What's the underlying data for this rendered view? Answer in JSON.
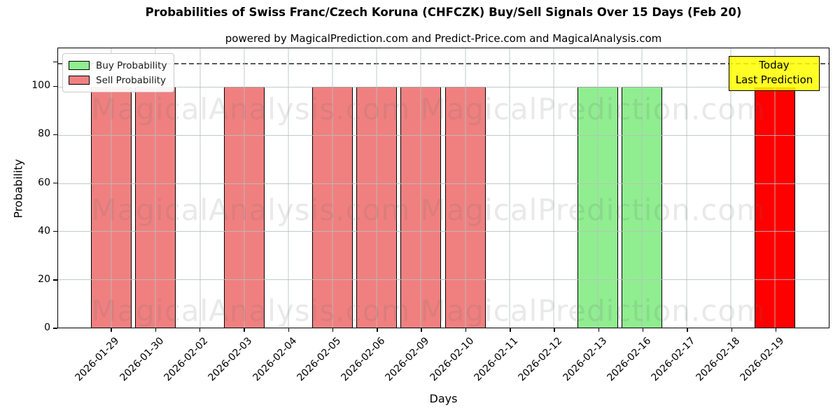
{
  "title": "Probabilities of Swiss Franc/Czech Koruna (CHFCZK) Buy/Sell Signals Over 15 Days (Feb 20)",
  "subtitle": "powered by MagicalPrediction.com and Predict-Price.com and MagicalAnalysis.com",
  "axes": {
    "ylabel": "Probability",
    "xlabel": "Days",
    "yticks": [
      0,
      20,
      40,
      60,
      80,
      100
    ]
  },
  "legend": {
    "items": [
      {
        "label": "Buy Probability",
        "color": "#90ee90"
      },
      {
        "label": "Sell Probability",
        "color": "#f08080"
      }
    ]
  },
  "annotation": {
    "line1": "Today",
    "line2": "Last Prediction",
    "bg_color": "#ffff00",
    "border_color": "#000000"
  },
  "watermarks": {
    "left": "MagicalAnalysis.com",
    "right": "MagicalPrediction.com"
  },
  "chart_data": {
    "type": "bar",
    "title": "Probabilities of Swiss Franc/Czech Koruna (CHFCZK) Buy/Sell Signals Over 15 Days (Feb 20)",
    "xlabel": "Days",
    "ylabel": "Probability",
    "categories": [
      "2026-01-29",
      "2026-01-30",
      "2026-02-02",
      "2026-02-03",
      "2026-02-04",
      "2026-02-05",
      "2026-02-06",
      "2026-02-09",
      "2026-02-10",
      "2026-02-11",
      "2026-02-12",
      "2026-02-13",
      "2026-02-16",
      "2026-02-17",
      "2026-02-18",
      "2026-02-19"
    ],
    "series": [
      {
        "name": "Buy Probability",
        "color": "#90ee90",
        "values": [
          0,
          0,
          0,
          0,
          0,
          0,
          0,
          0,
          0,
          0,
          0,
          100,
          100,
          0,
          0,
          0
        ]
      },
      {
        "name": "Sell Probability",
        "color": "#f08080",
        "values": [
          100,
          100,
          0,
          100,
          0,
          100,
          100,
          100,
          100,
          0,
          0,
          0,
          0,
          0,
          0,
          100
        ]
      }
    ],
    "today_index": 15,
    "today_color": "#ff0000",
    "bar_edge_color": "#000000",
    "ylim": [
      0,
      116
    ],
    "dashed_line_y": 110,
    "grid": true,
    "legend_position": "upper left"
  }
}
